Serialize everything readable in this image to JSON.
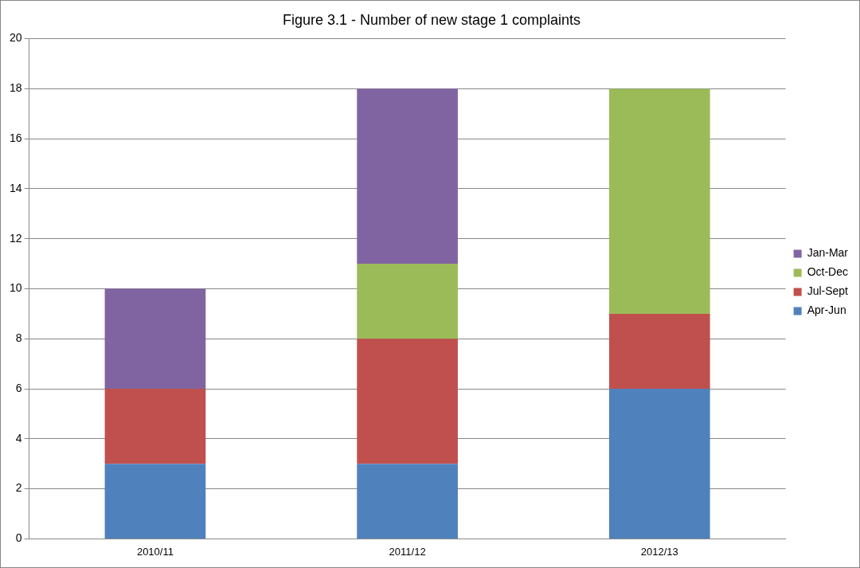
{
  "chart_data": {
    "type": "bar",
    "title": "Figure 3.1 - Number of new stage 1 complaints",
    "categories": [
      "2010/11",
      "2011/12",
      "2012/13"
    ],
    "series": [
      {
        "name": "Apr-Jun",
        "color": "#4f81bd",
        "values": [
          3,
          3,
          6
        ]
      },
      {
        "name": "Jul-Sept",
        "color": "#c0504d",
        "values": [
          3,
          5,
          3
        ]
      },
      {
        "name": "Oct-Dec",
        "color": "#9bbb59",
        "values": [
          0,
          3,
          9
        ]
      },
      {
        "name": "Jan-Mar",
        "color": "#8064a2",
        "values": [
          4,
          7,
          0
        ]
      }
    ],
    "stacked": true,
    "ylim": [
      0,
      20
    ],
    "yticks": [
      0,
      2,
      4,
      6,
      8,
      10,
      12,
      14,
      16,
      18,
      20
    ],
    "grid": "y",
    "legend": "right"
  }
}
